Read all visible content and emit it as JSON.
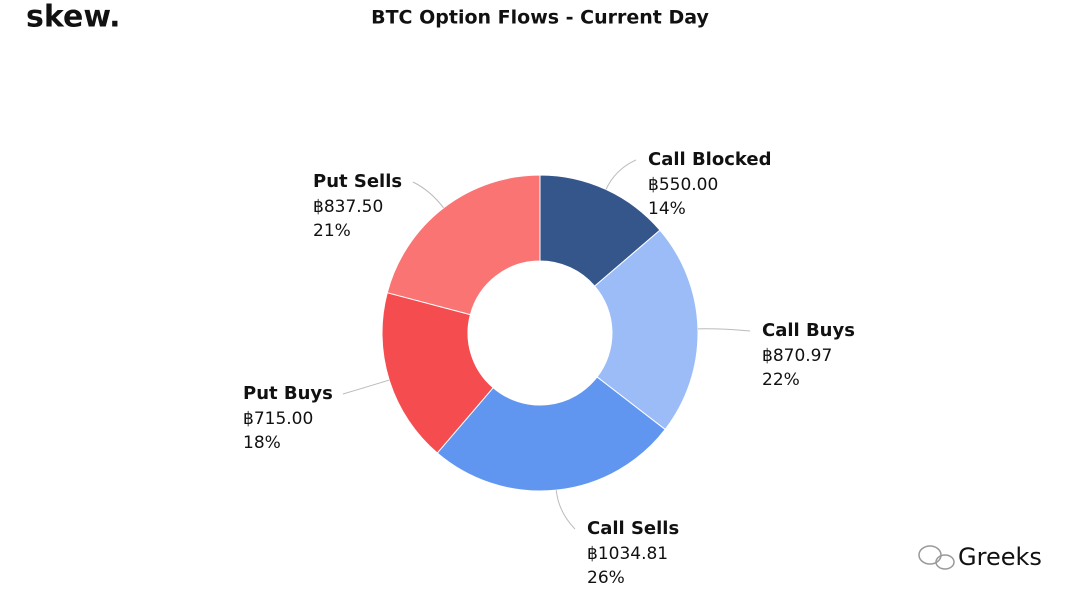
{
  "brand": "skew.",
  "watermark": "Greeks",
  "chart_data": {
    "type": "pie",
    "title": "BTC Option Flows - Current Day",
    "categories": [
      "Call Blocked",
      "Call Buys",
      "Call Sells",
      "Put Buys",
      "Put Sells"
    ],
    "values": [
      550.0,
      870.97,
      1034.81,
      715.0,
      837.5
    ],
    "value_labels": [
      "฿550.00",
      "฿870.97",
      "฿1034.81",
      "฿715.00",
      "฿837.50"
    ],
    "percent_labels": [
      "14%",
      "22%",
      "26%",
      "18%",
      "21%"
    ],
    "colors": [
      "#34568b",
      "#9bbcf7",
      "#6096f0",
      "#f54d4f",
      "#fa7474"
    ],
    "donut": true
  }
}
